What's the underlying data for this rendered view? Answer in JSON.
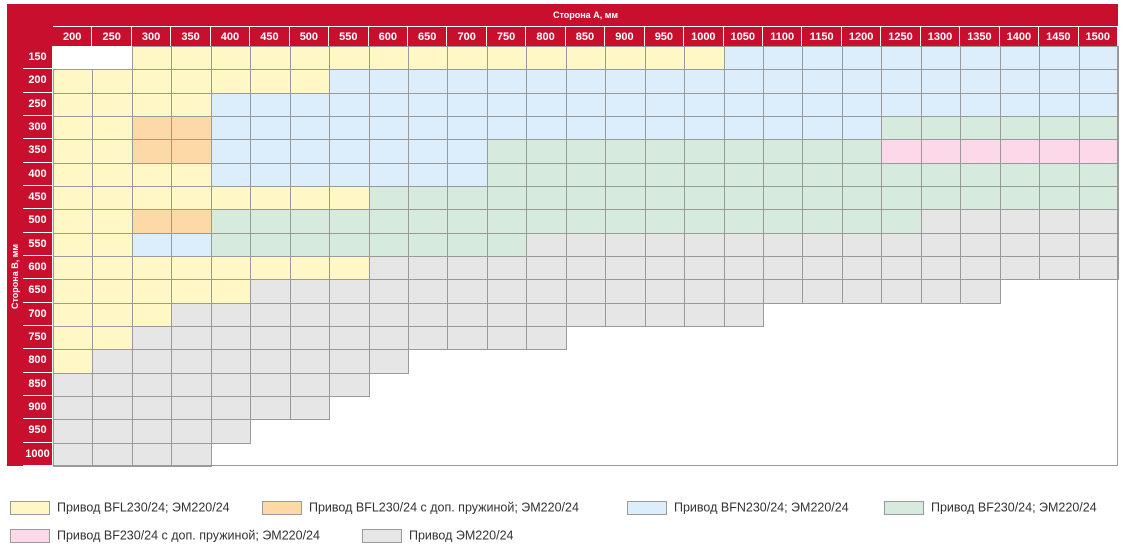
{
  "header": {
    "title": "Сторона A, мм",
    "side_label": "Сторона B, мм"
  },
  "columns": [
    "200",
    "250",
    "300",
    "350",
    "400",
    "450",
    "500",
    "550",
    "600",
    "650",
    "700",
    "750",
    "800",
    "850",
    "900",
    "950",
    "1000",
    "1050",
    "1100",
    "1150",
    "1200",
    "1250",
    "1300",
    "1350",
    "1400",
    "1450",
    "1500"
  ],
  "rows": [
    {
      "label": "150",
      "cells": "WWYYYYYYYYYYYYYYYBBBBBBBBBB"
    },
    {
      "label": "200",
      "cells": "YYYYYYYBBBBBBBBBBBBBBBBBBBB"
    },
    {
      "label": "250",
      "cells": "YYYYBBBBBBBBBBBBBBBBBBBBBBB"
    },
    {
      "label": "300",
      "cells": "YYOOBBBBBBBBBBBBBBBBBGGGGGG"
    },
    {
      "label": "350",
      "cells": "YYOOBBBBBBBGGGGGGGGGGPPPPPP"
    },
    {
      "label": "400",
      "cells": "YYYYBBBBBBBGGGGGGGGGGGGGGGG"
    },
    {
      "label": "450",
      "cells": "YYYYYYYYGGGGGGGGGGGGGGGGGGG"
    },
    {
      "label": "500",
      "cells": "YYOOGGGGGGGGGGGGGGGGGGRRRRR"
    },
    {
      "label": "550",
      "cells": "YYBBGGGGGGGGRRRRRRRRRRRRRRR"
    },
    {
      "label": "600",
      "cells": "YYYYYYYYRRRRRRRRRRRRRRRRRRR"
    },
    {
      "label": "650",
      "cells": "YYYYYRRRRRRRRRRRRRRRRRRR"
    },
    {
      "label": "700",
      "cells": "YYYRRRRRRRRRRRRRRR"
    },
    {
      "label": "750",
      "cells": "YYRRRRRRRRRRR"
    },
    {
      "label": "800",
      "cells": "YRRRRRRRR"
    },
    {
      "label": "850",
      "cells": "RRRRRRRR"
    },
    {
      "label": "900",
      "cells": "RRRRRRR"
    },
    {
      "label": "950",
      "cells": "RRRRR"
    },
    {
      "label": "1000",
      "cells": "RRRR"
    }
  ],
  "colors": {
    "Y": "#fff7c6",
    "O": "#fdd9a8",
    "B": "#dcedfb",
    "G": "#d6eadd",
    "P": "#fbd9e8",
    "R": "#e6e6e6",
    "W": "#ffffff"
  },
  "legend": [
    {
      "key": "Y",
      "label": "Привод BFL230/24; ЭМ220/24"
    },
    {
      "key": "O",
      "label": "Привод BFL230/24 с доп. пружиной; ЭМ220/24"
    },
    {
      "key": "B",
      "label": "Привод BFN230/24; ЭМ220/24"
    },
    {
      "key": "G",
      "label": "Привод BF230/24; ЭМ220/24"
    },
    {
      "key": "P",
      "label": "Привод BF230/24 с доп. пружиной; ЭМ220/24"
    },
    {
      "key": "R",
      "label": "Привод ЭМ220/24"
    }
  ]
}
